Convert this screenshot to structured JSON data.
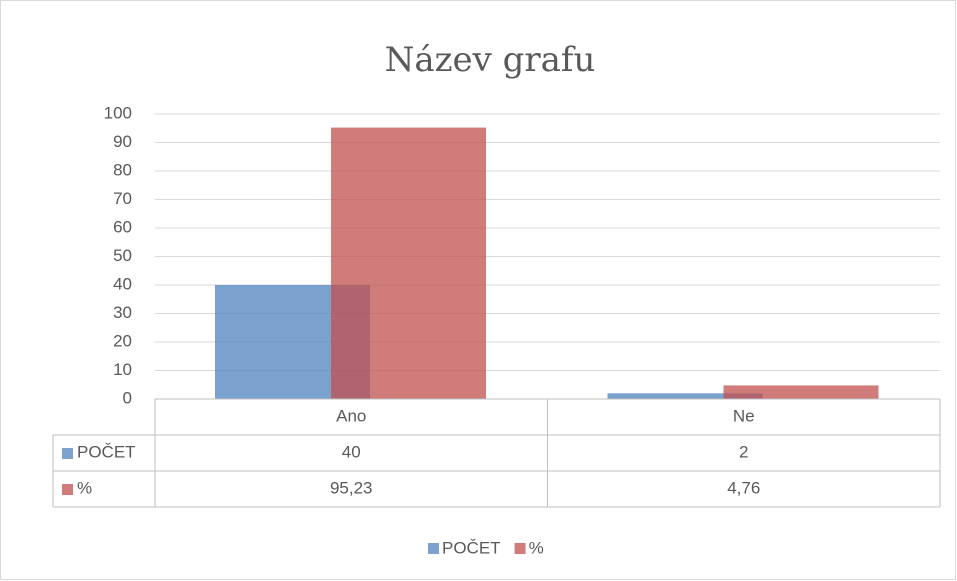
{
  "chart_data": {
    "type": "bar",
    "title": "Název grafu",
    "categories": [
      "Ano",
      "Ne"
    ],
    "series": [
      {
        "name": "POČET",
        "color": "#4f81bd",
        "values": [
          40,
          2
        ]
      },
      {
        "name": "%",
        "color": "#c0504d",
        "values": [
          95.23,
          4.76
        ],
        "value_labels": [
          "95,23",
          "4,76"
        ]
      }
    ],
    "ylim": [
      0,
      100
    ],
    "yticks": [
      0,
      10,
      20,
      30,
      40,
      50,
      60,
      70,
      80,
      90,
      100
    ],
    "grid": true,
    "legend": "bottom",
    "data_table": true
  }
}
